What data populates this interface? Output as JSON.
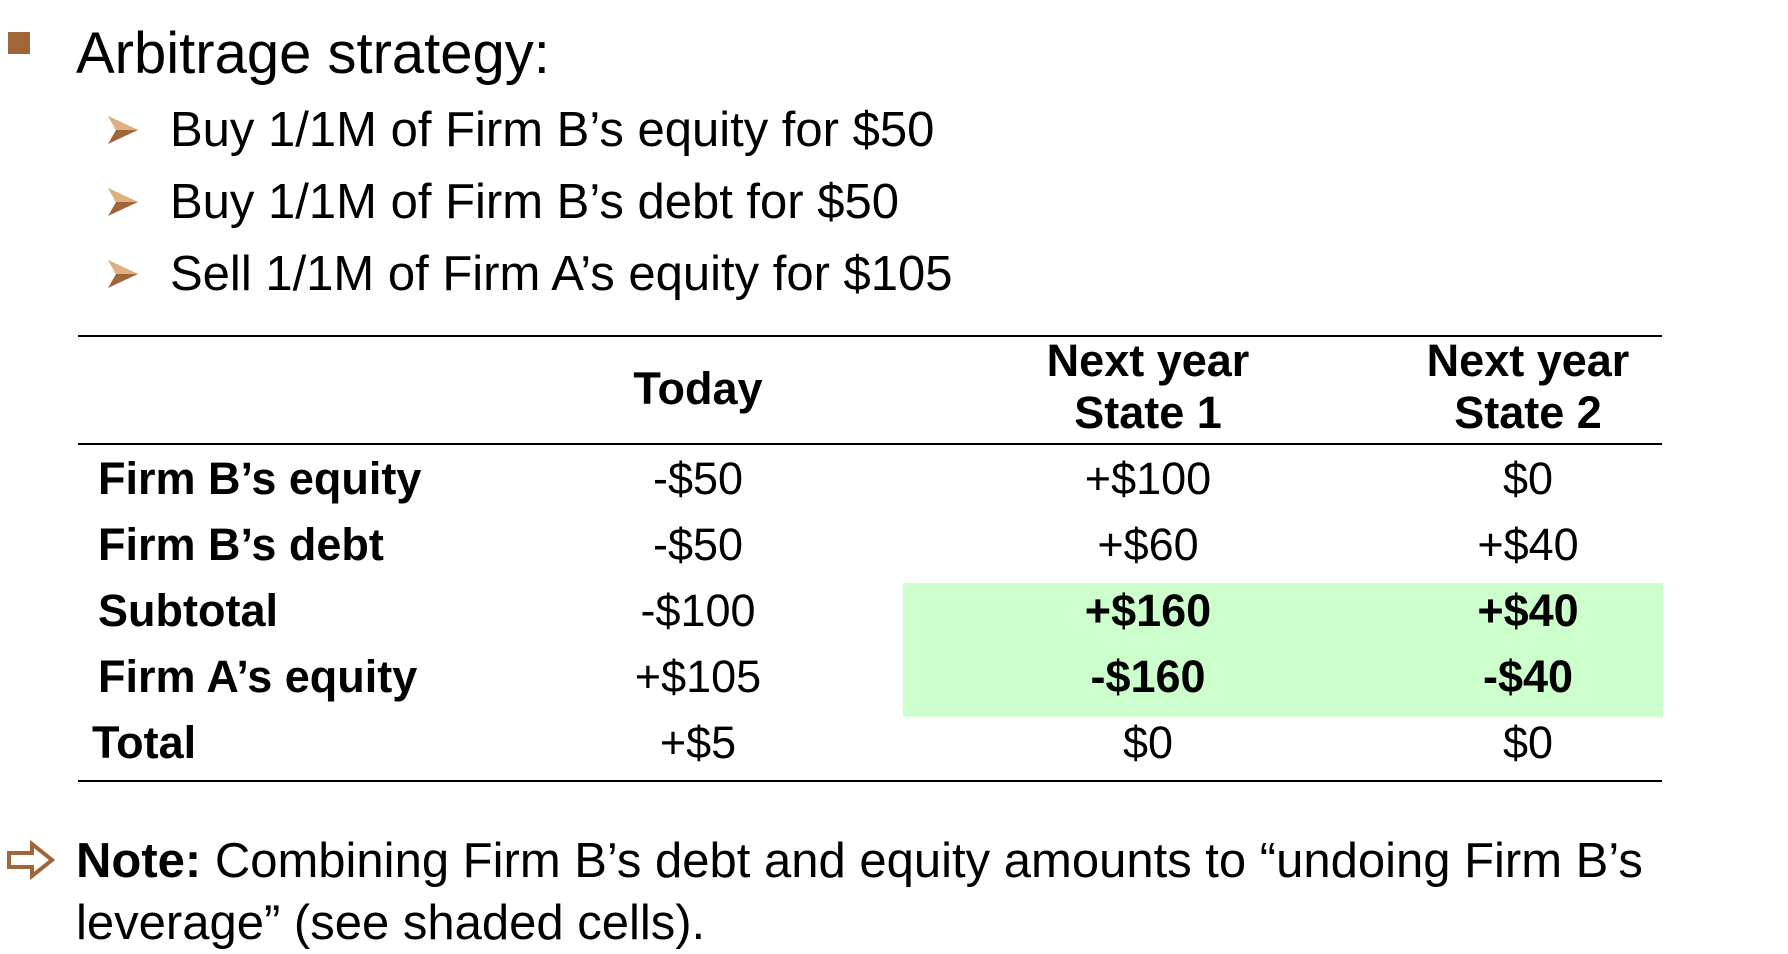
{
  "heading": "Arbitrage strategy:",
  "steps": [
    "Buy 1/1M of Firm B’s equity for $50",
    "Buy 1/1M of Firm B’s debt for $50",
    "Sell 1/1M of Firm A’s equity for $105"
  ],
  "colors": {
    "bullet": "#a0663a",
    "shade": "#ccffcc"
  },
  "table": {
    "headers": {
      "today": "Today",
      "state1_line1": "Next year",
      "state1_line2": "State 1",
      "state2_line1": "Next year",
      "state2_line2": "State 2"
    },
    "rows": [
      {
        "label": "Firm B’s equity",
        "today": "-$50",
        "state1": "+$100",
        "state2": "$0"
      },
      {
        "label": "Firm B’s debt",
        "today": "-$50",
        "state1": "+$60",
        "state2": "+$40"
      },
      {
        "label": "Subtotal",
        "today": "-$100",
        "state1": "+$160",
        "state2": "+$40"
      },
      {
        "label": "Firm A’s equity",
        "today": "+$105",
        "state1": "-$160",
        "state2": "-$40"
      },
      {
        "label": "Total",
        "today": "+$5",
        "state1": "$0",
        "state2": "$0"
      }
    ]
  },
  "note": {
    "label": "Note:",
    "text": " Combining Firm B’s debt and equity amounts to “undoing Firm B’s leverage” (see shaded cells)."
  }
}
